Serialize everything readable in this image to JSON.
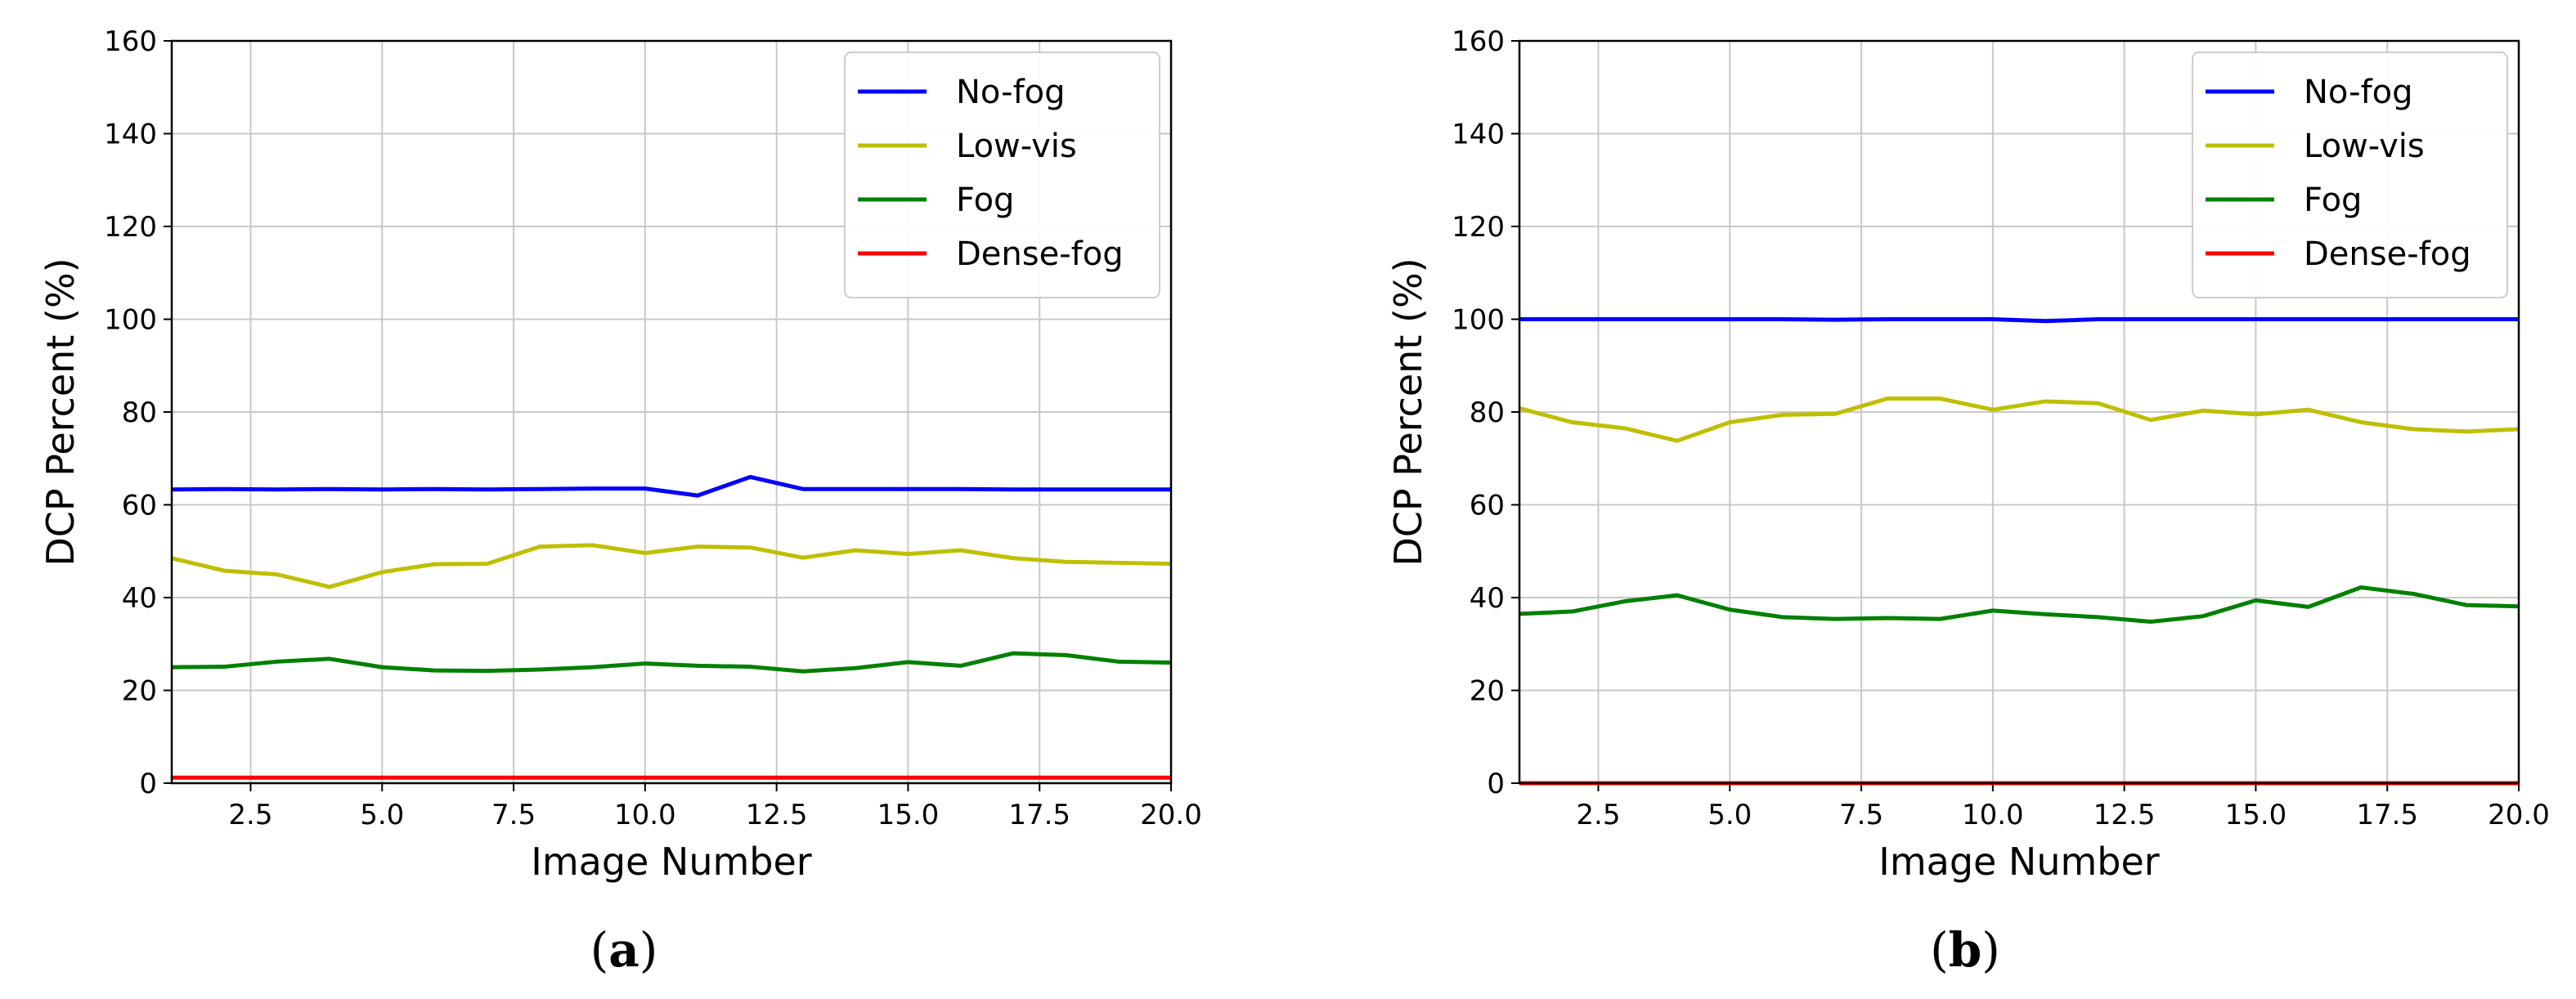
{
  "chart_data": [
    {
      "type": "line",
      "panel_label": "(a)",
      "panel_letter": "a",
      "xlabel": "Image Number",
      "ylabel": "DCP Percent (%)",
      "xlim": [
        1,
        20
      ],
      "ylim": [
        0,
        160
      ],
      "xticks": [
        "2.5",
        "5.0",
        "7.5",
        "10.0",
        "12.5",
        "15.0",
        "17.5",
        "20.0"
      ],
      "yticks": [
        "0",
        "20",
        "40",
        "60",
        "80",
        "100",
        "120",
        "140",
        "160"
      ],
      "grid": true,
      "legend_position": "top-right",
      "x": [
        1,
        2,
        3,
        4,
        5,
        6,
        7,
        8,
        9,
        10,
        11,
        12,
        13,
        14,
        15,
        16,
        17,
        18,
        19,
        20
      ],
      "series": [
        {
          "name": "No-fog",
          "color": "#0000ff",
          "values": [
            63.3,
            63.4,
            63.3,
            63.4,
            63.3,
            63.4,
            63.3,
            63.4,
            63.5,
            63.5,
            62.0,
            66.0,
            63.4,
            63.4,
            63.4,
            63.4,
            63.3,
            63.3,
            63.3,
            63.3
          ]
        },
        {
          "name": "Low-vis",
          "color": "#bfbf00",
          "values": [
            48.5,
            45.8,
            45.0,
            42.3,
            45.5,
            47.2,
            47.3,
            51.0,
            51.3,
            49.6,
            51.0,
            50.8,
            48.6,
            50.2,
            49.4,
            50.2,
            48.5,
            47.7,
            47.5,
            47.3
          ]
        },
        {
          "name": "Fog",
          "color": "#008000",
          "values": [
            25.0,
            25.1,
            26.2,
            26.8,
            25.0,
            24.3,
            24.2,
            24.5,
            25.0,
            25.8,
            25.3,
            25.1,
            24.1,
            24.8,
            26.1,
            25.3,
            28.0,
            27.6,
            26.2,
            26.0
          ]
        },
        {
          "name": "Dense-fog",
          "color": "#ff0000",
          "values": [
            1.2,
            1.2,
            1.2,
            1.2,
            1.2,
            1.2,
            1.2,
            1.2,
            1.2,
            1.2,
            1.2,
            1.2,
            1.2,
            1.2,
            1.2,
            1.2,
            1.2,
            1.2,
            1.2,
            1.2
          ]
        }
      ]
    },
    {
      "type": "line",
      "panel_label": "(b)",
      "panel_letter": "b",
      "xlabel": "Image Number",
      "ylabel": "DCP Percent (%)",
      "xlim": [
        1,
        20
      ],
      "ylim": [
        0,
        160
      ],
      "xticks": [
        "2.5",
        "5.0",
        "7.5",
        "10.0",
        "12.5",
        "15.0",
        "17.5",
        "20.0"
      ],
      "yticks": [
        "0",
        "20",
        "40",
        "60",
        "80",
        "100",
        "120",
        "140",
        "160"
      ],
      "grid": true,
      "legend_position": "top-right",
      "x": [
        1,
        2,
        3,
        4,
        5,
        6,
        7,
        8,
        9,
        10,
        11,
        12,
        13,
        14,
        15,
        16,
        17,
        18,
        19,
        20
      ],
      "series": [
        {
          "name": "No-fog",
          "color": "#0000ff",
          "values": [
            100,
            100,
            100,
            100,
            100,
            100,
            99.9,
            100,
            100,
            100,
            99.6,
            100,
            100,
            100,
            100,
            100,
            100,
            100,
            100,
            100
          ]
        },
        {
          "name": "Low-vis",
          "color": "#bfbf00",
          "values": [
            80.8,
            77.8,
            76.5,
            73.8,
            77.8,
            79.4,
            79.6,
            82.9,
            82.9,
            80.5,
            82.3,
            81.9,
            78.3,
            80.3,
            79.5,
            80.5,
            77.8,
            76.3,
            75.8,
            76.3
          ]
        },
        {
          "name": "Fog",
          "color": "#008000",
          "values": [
            36.5,
            37.0,
            39.2,
            40.5,
            37.4,
            35.8,
            35.4,
            35.6,
            35.4,
            37.2,
            36.4,
            35.8,
            34.8,
            36.0,
            39.4,
            38.0,
            42.2,
            40.8,
            38.4,
            38.1
          ]
        },
        {
          "name": "Dense-fog",
          "color": "#ff0000",
          "values": [
            0,
            0,
            0,
            0,
            0,
            0,
            0,
            0,
            0,
            0,
            0,
            0,
            0,
            0,
            0,
            0,
            0,
            0,
            0,
            0
          ]
        }
      ]
    }
  ]
}
